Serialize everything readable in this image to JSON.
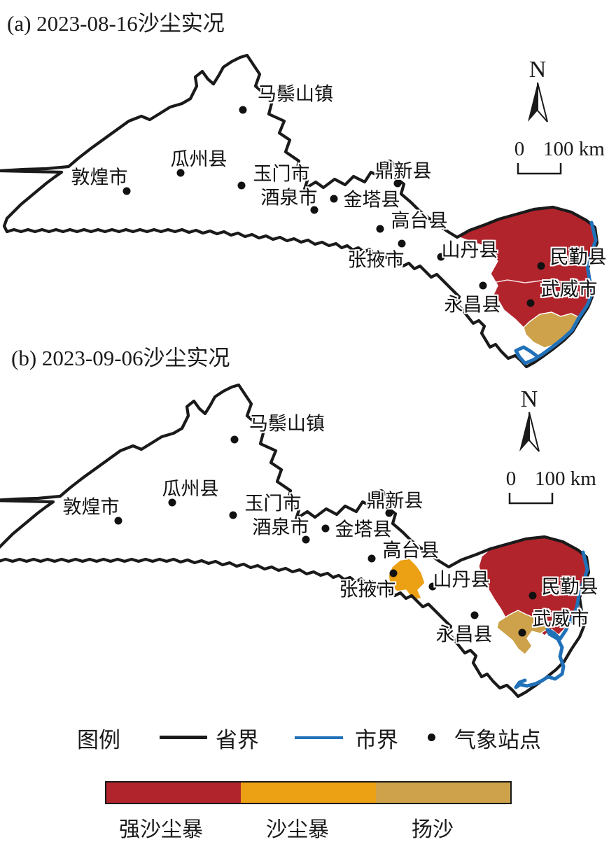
{
  "titles": {
    "panel_a": "(a) 2023-08-16沙尘实况",
    "panel_b": "(b) 2023-09-06沙尘实况"
  },
  "colors": {
    "strong_sandstorm": "#B2242C",
    "sandstorm": "#ECA014",
    "blowing_sand": "#CDA24B",
    "city_boundary": "#2171B9",
    "province_boundary": "#1A1A1A"
  },
  "compass": {
    "north_label": "N"
  },
  "scale_bar": {
    "zero": "0",
    "distance": "100 km"
  },
  "stations": [
    {
      "name": "马鬃山镇",
      "dot": [
        347,
        95
      ],
      "label": [
        422,
        70
      ]
    },
    {
      "name": "瓜州县",
      "dot": [
        258,
        185
      ],
      "label": [
        284,
        163
      ]
    },
    {
      "name": "敦煌市",
      "dot": [
        181,
        211
      ],
      "label": [
        142,
        189
      ]
    },
    {
      "name": "玉门市",
      "dot": [
        345,
        203
      ],
      "label": [
        402,
        184
      ]
    },
    {
      "name": "酒泉市",
      "dot": [
        449,
        238
      ],
      "label": [
        413,
        218
      ]
    },
    {
      "name": "鼎新县",
      "dot": [
        568,
        200
      ],
      "label": [
        576,
        180
      ]
    },
    {
      "name": "金塔县",
      "dot": [
        477,
        222
      ],
      "label": [
        531,
        221
      ]
    },
    {
      "name": "高台县",
      "dot": [
        543,
        265
      ],
      "label": [
        599,
        251
      ]
    },
    {
      "name": "张掖市",
      "dot": [
        574,
        286
      ],
      "label": [
        537,
        307
      ]
    },
    {
      "name": "山丹县",
      "dot": [
        630,
        305
      ],
      "label": [
        671,
        293
      ]
    },
    {
      "name": "民勤县",
      "dot": [
        773,
        318
      ],
      "label": [
        826,
        303
      ]
    },
    {
      "name": "武威市",
      "dot": [
        758,
        371
      ],
      "label": [
        813,
        349
      ]
    },
    {
      "name": "永昌县",
      "dot": [
        690,
        346
      ],
      "label": [
        675,
        371
      ]
    }
  ],
  "legend": {
    "title": "图例",
    "province_boundary": "省界",
    "city_boundary": "市界",
    "weather_station": "气象站点"
  },
  "colorbar": {
    "labels": [
      "强沙尘暴",
      "沙尘暴",
      "扬沙"
    ]
  }
}
